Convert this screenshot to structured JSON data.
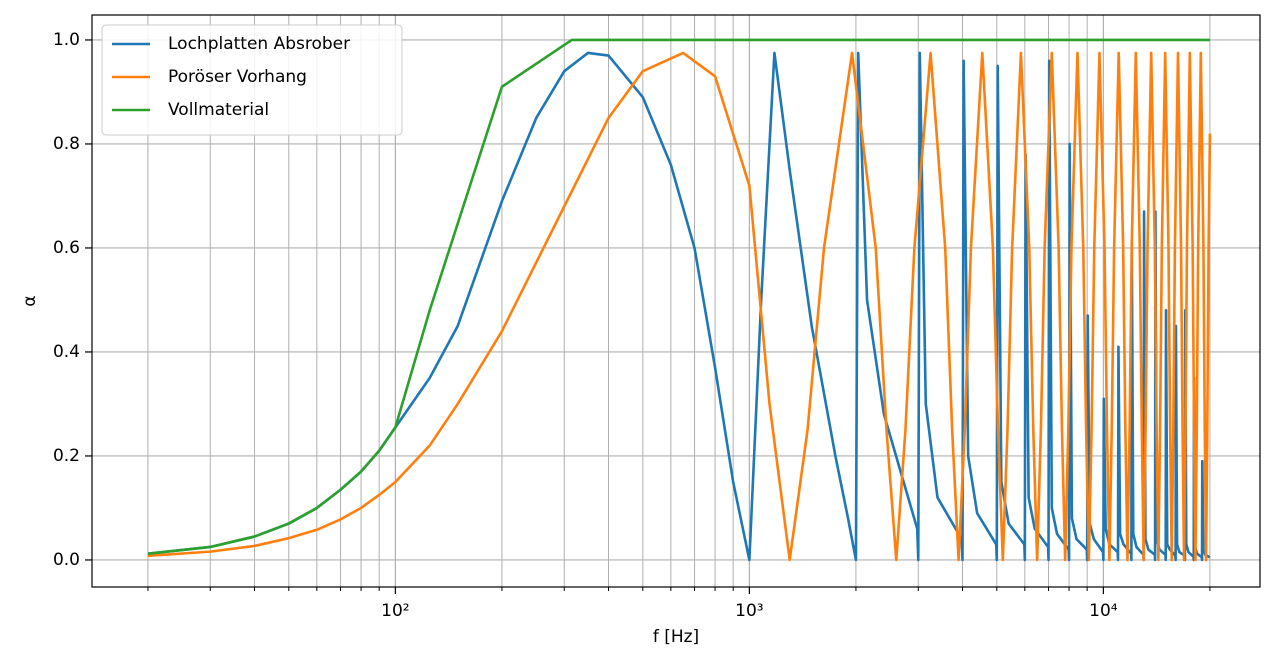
{
  "chart_data": {
    "type": "line",
    "xlabel": "f [Hz]",
    "ylabel": "α",
    "xscale": "log",
    "xlim": [
      13.9,
      27700
    ],
    "ylim": [
      -0.052,
      1.048
    ],
    "xticks": [
      {
        "value": 100,
        "label": "10²"
      },
      {
        "value": 1000,
        "label": "10³"
      },
      {
        "value": 10000,
        "label": "10⁴"
      }
    ],
    "xminorticks": [
      20,
      30,
      40,
      50,
      60,
      70,
      80,
      90,
      200,
      300,
      400,
      500,
      600,
      700,
      800,
      900,
      2000,
      3000,
      4000,
      5000,
      6000,
      7000,
      8000,
      9000,
      20000
    ],
    "yticks": [
      {
        "value": 0,
        "label": "0.0"
      },
      0.2,
      0.4,
      0.6,
      0.8,
      {
        "value": 1,
        "label": "1.0"
      }
    ],
    "grid": true,
    "legend": "upper left",
    "series": [
      {
        "name": "Lochplatten Absrober",
        "color": "#1f77b4",
        "x": [
          20,
          30,
          40,
          50,
          60,
          70,
          80,
          90,
          100,
          125,
          150,
          200,
          250,
          300,
          350,
          400,
          500,
          600,
          700,
          800,
          900,
          1000,
          1080,
          1177,
          1300,
          1500,
          1750,
          1900,
          2000,
          2030,
          2150,
          2400,
          2980,
          3000,
          3030,
          3150,
          3400,
          3980,
          4000,
          4030,
          4150,
          4400,
          4980,
          5000,
          5030,
          5150,
          5400,
          5980,
          6000,
          6030,
          6150,
          6400,
          6980,
          7000,
          7030,
          7150,
          7400,
          7980,
          8000,
          8030,
          8150,
          8400,
          8980,
          9000,
          9030,
          9150,
          9400,
          9980,
          10000,
          10030,
          10150,
          10400,
          10980,
          11000,
          11030,
          11150,
          11400,
          11980,
          12000,
          12030,
          12150,
          12400,
          12980,
          13000,
          13030,
          13150,
          13400,
          13980,
          14000,
          14030,
          14150,
          14400,
          14980,
          15000,
          15030,
          15150,
          15400,
          15980,
          16000,
          16030,
          16150,
          16400,
          16980,
          17000,
          17030,
          17150,
          17400,
          17980,
          18000,
          18030,
          18150,
          18400,
          18980,
          19000,
          19030,
          19150,
          19400,
          20000
        ],
        "values": [
          0.012,
          0.025,
          0.045,
          0.07,
          0.1,
          0.135,
          0.17,
          0.21,
          0.255,
          0.35,
          0.45,
          0.69,
          0.85,
          0.94,
          0.975,
          0.97,
          0.89,
          0.76,
          0.6,
          0.37,
          0.15,
          0.0,
          0.5,
          0.975,
          0.75,
          0.45,
          0.2,
          0.08,
          0.0,
          0.975,
          0.5,
          0.28,
          0.06,
          0.0,
          0.975,
          0.3,
          0.12,
          0.04,
          0.0,
          0.96,
          0.2,
          0.09,
          0.03,
          0.0,
          0.95,
          0.15,
          0.07,
          0.03,
          0.0,
          0.78,
          0.12,
          0.06,
          0.025,
          0.0,
          0.96,
          0.1,
          0.05,
          0.02,
          0.0,
          0.8,
          0.08,
          0.04,
          0.02,
          0.0,
          0.47,
          0.07,
          0.04,
          0.015,
          0.0,
          0.31,
          0.06,
          0.03,
          0.015,
          0.0,
          0.41,
          0.05,
          0.03,
          0.012,
          0.0,
          0.61,
          0.05,
          0.025,
          0.01,
          0.0,
          0.67,
          0.04,
          0.02,
          0.01,
          0.0,
          0.67,
          0.04,
          0.02,
          0.01,
          0.0,
          0.48,
          0.03,
          0.02,
          0.008,
          0.0,
          0.45,
          0.03,
          0.015,
          0.008,
          0.0,
          0.48,
          0.03,
          0.015,
          0.006,
          0.0,
          0.35,
          0.025,
          0.012,
          0.005,
          0.0,
          0.19,
          0.02,
          0.01,
          0.005
        ]
      },
      {
        "name": "Poröser Vorhang",
        "color": "#ff7f0e",
        "x": [
          20,
          30,
          40,
          50,
          60,
          70,
          80,
          90,
          100,
          125,
          150,
          200,
          300,
          400,
          500,
          650,
          800,
          1000,
          1140,
          1300,
          1460,
          1625,
          1950,
          2275,
          2440,
          2600,
          2760,
          2925,
          3250,
          3575,
          3740,
          3900,
          4060,
          4225,
          4550,
          4875,
          5040,
          5200,
          5360,
          5525,
          5850,
          6175,
          6340,
          6500,
          6660,
          6825,
          7150,
          7475,
          7640,
          7800,
          7960,
          8125,
          8450,
          8775,
          8940,
          9100,
          9260,
          9425,
          9750,
          10075,
          10240,
          10400,
          10560,
          10725,
          11050,
          11375,
          11540,
          11700,
          11860,
          12025,
          12350,
          12675,
          12840,
          13000,
          13160,
          13325,
          13650,
          13975,
          14140,
          14300,
          14460,
          14625,
          14950,
          15275,
          15440,
          15600,
          15760,
          15925,
          16250,
          16575,
          16740,
          16900,
          17060,
          17225,
          17550,
          17875,
          18040,
          18200,
          18360,
          18525,
          18850,
          19175,
          19340,
          19500,
          19660,
          19825,
          20000
        ],
        "values": [
          0.008,
          0.016,
          0.027,
          0.042,
          0.058,
          0.078,
          0.1,
          0.125,
          0.15,
          0.22,
          0.3,
          0.44,
          0.68,
          0.85,
          0.94,
          0.975,
          0.93,
          0.72,
          0.3,
          0,
          0.25,
          0.6,
          0.975,
          0.6,
          0.25,
          0,
          0.25,
          0.6,
          0.975,
          0.6,
          0.25,
          0,
          0.25,
          0.6,
          0.975,
          0.6,
          0.25,
          0,
          0.25,
          0.6,
          0.975,
          0.6,
          0.25,
          0,
          0.25,
          0.6,
          0.975,
          0.6,
          0.25,
          0,
          0.25,
          0.6,
          0.975,
          0.6,
          0.25,
          0,
          0.25,
          0.6,
          0.975,
          0.6,
          0.25,
          0,
          0.25,
          0.6,
          0.975,
          0.6,
          0.25,
          0,
          0.25,
          0.6,
          0.975,
          0.6,
          0.25,
          0,
          0.25,
          0.6,
          0.975,
          0.6,
          0.25,
          0,
          0.25,
          0.6,
          0.975,
          0.6,
          0.25,
          0,
          0.25,
          0.6,
          0.975,
          0.6,
          0.25,
          0,
          0.25,
          0.6,
          0.975,
          0.6,
          0.25,
          0,
          0.25,
          0.6,
          0.975,
          0.6,
          0.25,
          0,
          0.25,
          0.6,
          0.82
        ]
      },
      {
        "name": "Vollmaterial",
        "color": "#2ca02c",
        "x": [
          20,
          30,
          40,
          50,
          60,
          70,
          80,
          90,
          100,
          125,
          200,
          315,
          20000
        ],
        "values": [
          0.012,
          0.025,
          0.045,
          0.07,
          0.1,
          0.135,
          0.17,
          0.21,
          0.255,
          0.48,
          0.91,
          1.0,
          1.0
        ]
      }
    ]
  }
}
